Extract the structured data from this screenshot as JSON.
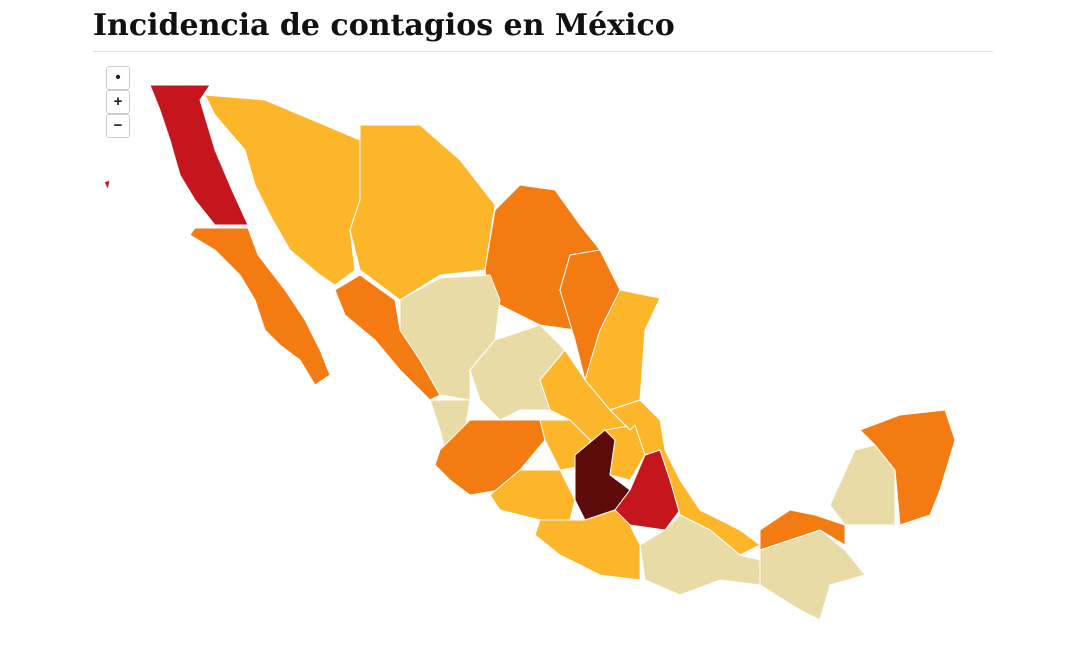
{
  "header": {
    "title": "Incidencia de contagios en México"
  },
  "controls": [
    {
      "label": "•"
    },
    {
      "label": "+"
    },
    {
      "label": "−"
    }
  ]
}
